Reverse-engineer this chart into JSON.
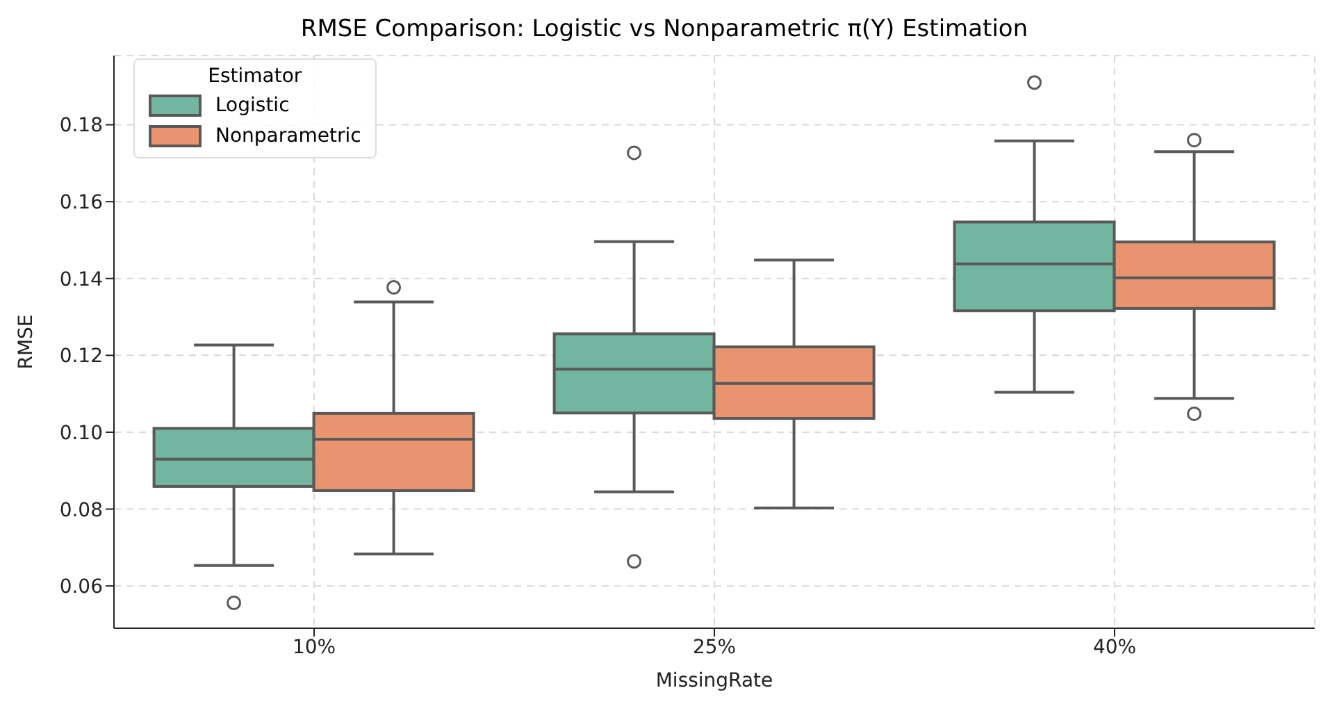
{
  "chart_data": {
    "type": "box",
    "title": "RMSE Comparison: Logistic vs Nonparametric π(Y) Estimation",
    "xlabel": "MissingRate",
    "ylabel": "RMSE",
    "legend_title": "Estimator",
    "legend": "top left",
    "grid": true,
    "categories": [
      "10%",
      "25%",
      "40%"
    ],
    "ylim": [
      0.049,
      0.198
    ],
    "yticks": [
      0.06,
      0.08,
      {
        "value": 0.1,
        "label": "0.10"
      },
      0.12,
      0.14,
      0.16,
      0.18
    ],
    "series": [
      {
        "name": "Logistic",
        "color": "#72b5a0",
        "boxes": [
          {
            "low": 0.0653,
            "q1": 0.0859,
            "median": 0.093,
            "q3": 0.101,
            "high": 0.1227,
            "outliers": [
              0.0556
            ]
          },
          {
            "low": 0.0845,
            "q1": 0.105,
            "median": 0.1164,
            "q3": 0.1256,
            "high": 0.1496,
            "outliers": [
              0.1727,
              0.0664
            ]
          },
          {
            "low": 0.1104,
            "q1": 0.1316,
            "median": 0.1438,
            "q3": 0.1547,
            "high": 0.1758,
            "outliers": [
              0.191
            ]
          }
        ]
      },
      {
        "name": "Nonparametric",
        "color": "#e8946f",
        "boxes": [
          {
            "low": 0.0683,
            "q1": 0.0848,
            "median": 0.0982,
            "q3": 0.1049,
            "high": 0.1339,
            "outliers": [
              0.1377
            ]
          },
          {
            "low": 0.0803,
            "q1": 0.1036,
            "median": 0.1127,
            "q3": 0.1222,
            "high": 0.1448
          },
          {
            "low": 0.1088,
            "q1": 0.1322,
            "median": 0.1402,
            "q3": 0.1495,
            "high": 0.173,
            "outliers": [
              0.176,
              0.1048
            ]
          }
        ]
      }
    ]
  }
}
